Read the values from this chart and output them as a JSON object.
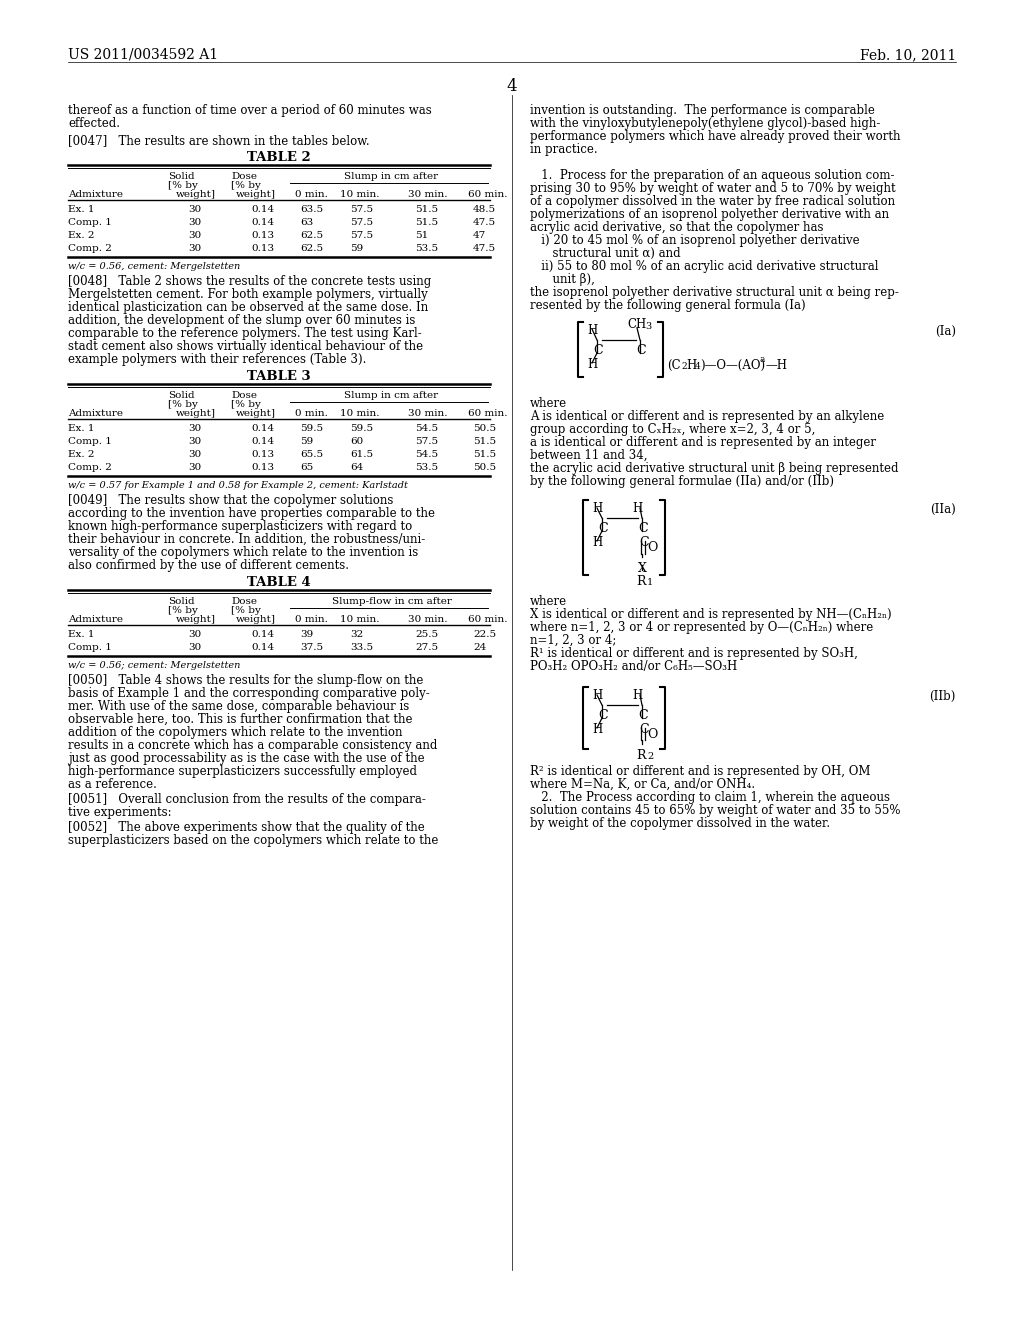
{
  "patent_number": "US 2011/0034592 A1",
  "date": "Feb. 10, 2011",
  "page_number": "4",
  "background_color": "#ffffff",
  "text_color": "#000000",
  "left_column": {
    "para_pre": "thereof as a function of time over a period of 60 minutes was\neffected.",
    "para_0047": "[0047]   The results are shown in the tables below.",
    "table2": {
      "title": "TABLE 2",
      "rows": [
        [
          "Ex. 1",
          "30",
          "0.14",
          "63.5",
          "57.5",
          "51.5",
          "48.5"
        ],
        [
          "Comp. 1",
          "30",
          "0.14",
          "63",
          "57.5",
          "51.5",
          "47.5"
        ],
        [
          "Ex. 2",
          "30",
          "0.13",
          "62.5",
          "57.5",
          "51",
          "47"
        ],
        [
          "Comp. 2",
          "30",
          "0.13",
          "62.5",
          "59",
          "53.5",
          "47.5"
        ]
      ],
      "footnote": "w/c = 0.56, cement: Mergelstetten"
    },
    "para_0048": "[0048]   Table 2 shows the results of the concrete tests using\nMergelstetten cement. For both example polymers, virtually\nidentical plasticization can be observed at the same dose. In\naddition, the development of the slump over 60 minutes is\ncomparable to the reference polymers. The test using Karl-\nstadt cement also shows virtually identical behaviour of the\nexample polymers with their references (Table 3).",
    "table3": {
      "title": "TABLE 3",
      "rows": [
        [
          "Ex. 1",
          "30",
          "0.14",
          "59.5",
          "59.5",
          "54.5",
          "50.5"
        ],
        [
          "Comp. 1",
          "30",
          "0.14",
          "59",
          "60",
          "57.5",
          "51.5"
        ],
        [
          "Ex. 2",
          "30",
          "0.13",
          "65.5",
          "61.5",
          "54.5",
          "51.5"
        ],
        [
          "Comp. 2",
          "30",
          "0.13",
          "65",
          "64",
          "53.5",
          "50.5"
        ]
      ],
      "footnote": "w/c = 0.57 for Example 1 and 0.58 for Example 2, cement: Karlstadt"
    },
    "para_0049": "[0049]   The results show that the copolymer solutions\naccording to the invention have properties comparable to the\nknown high-performance superplasticizers with regard to\ntheir behaviour in concrete. In addition, the robustness/uni-\nversality of the copolymers which relate to the invention is\nalso confirmed by the use of different cements.",
    "table4": {
      "title": "TABLE 4",
      "slump_header": "Slump-flow in cm after",
      "rows": [
        [
          "Ex. 1",
          "30",
          "0.14",
          "39",
          "32",
          "25.5",
          "22.5"
        ],
        [
          "Comp. 1",
          "30",
          "0.14",
          "37.5",
          "33.5",
          "27.5",
          "24"
        ]
      ],
      "footnote": "w/c = 0.56; cement: Mergelstetten"
    },
    "para_0050": "[0050]   Table 4 shows the results for the slump-flow on the\nbasis of Example 1 and the corresponding comparative poly-\nmer. With use of the same dose, comparable behaviour is\nobservable here, too. This is further confirmation that the\naddition of the copolymers which relate to the invention\nresults in a concrete which has a comparable consistency and\njust as good processability as is the case with the use of the\nhigh-performance superplasticizers successfully employed\nas a reference.",
    "para_0051": "[0051]   Overall conclusion from the results of the compara-\ntive experiments:",
    "para_0052": "[0052]   The above experiments show that the quality of the\nsuperplasticizers based on the copolymers which relate to the"
  },
  "right_column": {
    "para_intro": "invention is outstanding.  The performance is comparable\nwith the vinyloxybutylenepoly(ethylene glycol)-based high-\nperformance polymers which have already proved their worth\nin practice.",
    "claim1_lines": [
      "   1.  Process for the preparation of an aqueous solution com-",
      "prising 30 to 95% by weight of water and 5 to 70% by weight",
      "of a copolymer dissolved in the water by free radical solution",
      "polymerizations of an isoprenol polyether derivative with an",
      "acrylic acid derivative, so that the copolymer has",
      "   i) 20 to 45 mol % of an isoprenol polyether derivative",
      "      structural unit α) and",
      "   ii) 55 to 80 mol % of an acrylic acid derivative structural",
      "      unit β),",
      "the isoprenol polyether derivative structural unit α being rep-",
      "resented by the following general formula (Ia)"
    ],
    "formula_Ia_label": "(Ia)",
    "where_Ia_lines": [
      "where",
      "A is identical or different and is represented by an alkylene",
      "group according to CₓH₂ₓ, where x=2, 3, 4 or 5,",
      "a is identical or different and is represented by an integer",
      "between 11 and 34,",
      "the acrylic acid derivative structural unit β being represented",
      "by the following general formulae (IIa) and/or (IIb)"
    ],
    "formula_IIa_label": "(IIa)",
    "where_IIa_lines": [
      "where",
      "X is identical or different and is represented by NH—(CₙH₂ₙ)",
      "where n=1, 2, 3 or 4 or represented by O—(CₙH₂ₙ) where",
      "n=1, 2, 3 or 4;",
      "R¹ is identical or different and is represented by SO₃H,",
      "PO₃H₂ OPO₃H₂ and/or C₆H₅—SO₃H"
    ],
    "formula_IIb_label": "(IIb)",
    "where_IIb_lines": [
      "R² is identical or different and is represented by OH, OM",
      "where M=Na, K, or Ca, and/or ONH₄.",
      "   2.  The Process according to claim 1, wherein the aqueous",
      "solution contains 45 to 65% by weight of water and 35 to 55%",
      "by weight of the copolymer dissolved in the water."
    ]
  }
}
